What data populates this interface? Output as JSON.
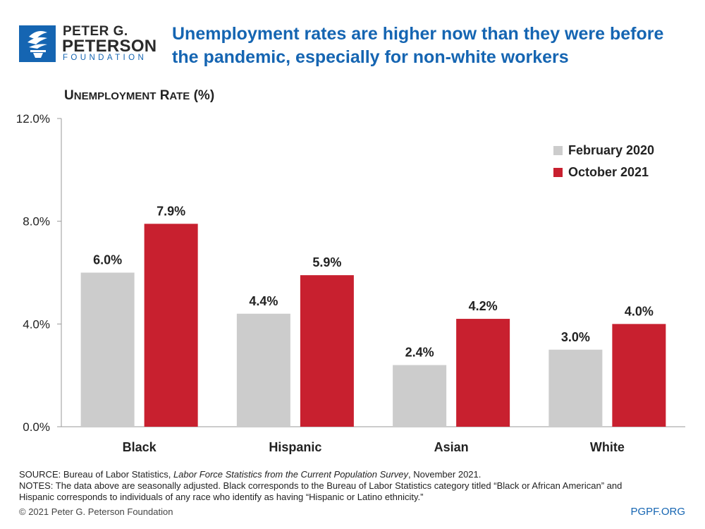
{
  "logo": {
    "line1": "PETER G.",
    "line2": "PETERSON",
    "line3": "FOUNDATION",
    "icon": "torch-icon",
    "brand_color": "#1565b2"
  },
  "title_lines": [
    "Unemployment rates are higher now than they were before",
    "the pandemic, especially for non-white workers"
  ],
  "chart_data": {
    "type": "bar",
    "ylabel": "Unemployment Rate (%)",
    "categories": [
      "Black",
      "Hispanic",
      "Asian",
      "White"
    ],
    "series": [
      {
        "name": "February 2020",
        "values": [
          6.0,
          4.4,
          2.4,
          3.0
        ],
        "color": "#cccccc"
      },
      {
        "name": "October 2021",
        "values": [
          7.9,
          5.9,
          4.2,
          4.0
        ],
        "color": "#c8202f"
      }
    ],
    "ylim": [
      0,
      12
    ],
    "yticks": [
      0,
      4,
      8,
      12
    ],
    "ytick_labels": [
      "0.0%",
      "4.0%",
      "8.0%",
      "12.0%"
    ],
    "data_labels": [
      [
        "6.0%",
        "4.4%",
        "2.4%",
        "3.0%"
      ],
      [
        "7.9%",
        "5.9%",
        "4.2%",
        "4.0%"
      ]
    ],
    "grid": false,
    "legend": "top-right"
  },
  "notes": {
    "source_prefix": "SOURCE: Bureau of Labor Statistics, ",
    "source_italic": "Labor Force Statistics from the Current Population Survey",
    "source_suffix": ", November 2021.",
    "notes_line1": "NOTES: The data above are seasonally adjusted. Black corresponds to the Bureau of Labor Statistics category titled “Black or African American” and",
    "notes_line2": "Hispanic corresponds to individuals of any race who identify as having “Hispanic or Latino ethnicity.”"
  },
  "footer": {
    "copyright": "© 2021 Peter G. Peterson Foundation",
    "site": "PGPF.ORG"
  }
}
